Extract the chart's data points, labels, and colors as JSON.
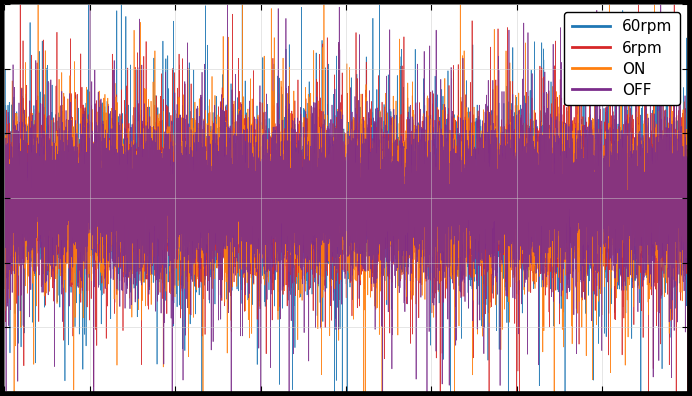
{
  "title": "",
  "xlabel": "",
  "ylabel": "",
  "colors": {
    "60rpm": "#1f77b4",
    "6rpm": "#d62728",
    "ON": "#ff7f0e",
    "OFF": "#7b2d8b"
  },
  "legend_labels": [
    "60rpm",
    "6rpm",
    "ON",
    "OFF"
  ],
  "legend_colors": [
    "#1f77b4",
    "#d62728",
    "#ff7f0e",
    "#7b2d8b"
  ],
  "n_points": 10000,
  "ylim": [
    -1.5,
    1.5
  ],
  "xlim": [
    0,
    1
  ],
  "background_color": "#ffffff",
  "seed": 42,
  "line_width": 0.5,
  "alpha": 0.9
}
